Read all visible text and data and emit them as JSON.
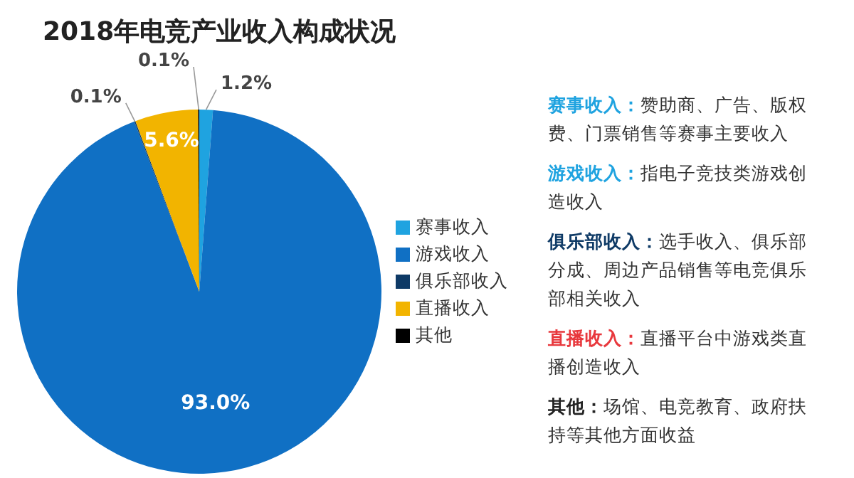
{
  "chart_data": {
    "type": "pie",
    "title": "2018年电竞产业收入构成状况",
    "categories": [
      "赛事收入",
      "游戏收入",
      "俱乐部收入",
      "直播收入",
      "其他"
    ],
    "values": [
      1.2,
      93.0,
      0.1,
      5.6,
      0.1
    ],
    "colors": [
      "#1fa3e0",
      "#1070c4",
      "#0e3a66",
      "#f2b400",
      "#000000"
    ],
    "value_labels": [
      "1.2%",
      "93.0%",
      "0.1%",
      "5.6%",
      "0.1%"
    ],
    "legend": "right",
    "annotations": [
      "赛事收入：赞助商、广告、版权费、门票销售等赛事主要收入",
      "游戏收入：指电子竞技类游戏创造收入",
      "俱乐部收入：选手收入、俱乐部分成、周边产品销售等电竞俱乐部相关收入",
      "直播收入：直播平台中游戏类直播创造收入",
      "其他：场馆、电竞教育、政府扶持等其他方面收益"
    ]
  }
}
